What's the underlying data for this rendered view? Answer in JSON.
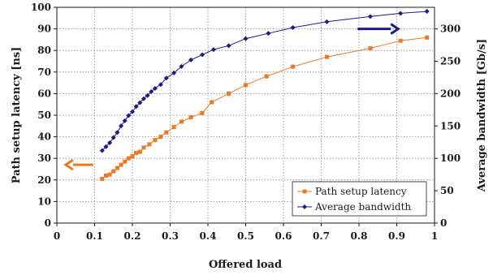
{
  "chart_data": {
    "type": "line",
    "xlabel": "Offered load",
    "ylabel_left": "Path setup latency [ns]",
    "ylabel_right": "Average bandwidth [Gb/s]",
    "xlim": [
      0,
      1
    ],
    "ylim_left": [
      0,
      100
    ],
    "ylim_right": [
      0,
      333.33
    ],
    "x_ticks": [
      "0",
      "0.1",
      "0.2",
      "0.3",
      "0.4",
      "0.5",
      "0.6",
      "0.7",
      "0.8",
      "0.9",
      "1"
    ],
    "y_ticks_left": [
      "0",
      "10",
      "20",
      "30",
      "40",
      "50",
      "60",
      "70",
      "80",
      "90",
      "100"
    ],
    "y_ticks_right": [
      "0",
      "50",
      "100",
      "150",
      "200",
      "250",
      "300"
    ],
    "grid": true,
    "legend_position": "bottom-right",
    "colors": {
      "latency": "#f07820",
      "bandwidth": "#1a1a8c"
    },
    "series": [
      {
        "name": "Path setup latency",
        "axis": "left",
        "marker": "square",
        "x": [
          0.12,
          0.13,
          0.14,
          0.15,
          0.16,
          0.17,
          0.18,
          0.19,
          0.2,
          0.21,
          0.22,
          0.23,
          0.245,
          0.26,
          0.275,
          0.29,
          0.31,
          0.33,
          0.355,
          0.385,
          0.41,
          0.455,
          0.5,
          0.555,
          0.625,
          0.715,
          0.83,
          0.91,
          0.98
        ],
        "values": [
          20.5,
          22,
          22.5,
          24,
          25.5,
          27,
          28.5,
          30,
          31,
          32.5,
          33,
          35,
          36.5,
          38.5,
          40,
          42,
          44.5,
          47,
          49,
          51,
          56,
          60,
          64,
          68,
          72.5,
          77,
          81,
          84.5,
          86
        ]
      },
      {
        "name": "Average bandwidth",
        "axis": "right",
        "marker": "diamond",
        "x": [
          0.12,
          0.13,
          0.14,
          0.15,
          0.16,
          0.17,
          0.18,
          0.19,
          0.2,
          0.21,
          0.22,
          0.23,
          0.24,
          0.25,
          0.26,
          0.275,
          0.29,
          0.31,
          0.33,
          0.355,
          0.385,
          0.415,
          0.455,
          0.5,
          0.56,
          0.625,
          0.715,
          0.83,
          0.91,
          0.98
        ],
        "values": [
          112,
          118,
          124,
          132,
          140,
          150,
          158,
          166,
          172,
          180,
          186,
          192,
          197,
          203,
          208,
          214,
          224,
          232,
          242,
          252,
          260,
          268,
          274,
          285,
          293,
          302,
          311,
          319,
          324,
          327
        ]
      }
    ],
    "annotations": [
      {
        "type": "arrow",
        "direction": "left",
        "color": "#f07820",
        "x": 0.06,
        "y_left": 27
      },
      {
        "type": "arrow",
        "direction": "right",
        "color": "#1a1a8c",
        "x": 0.85,
        "y_left": 90
      }
    ]
  }
}
